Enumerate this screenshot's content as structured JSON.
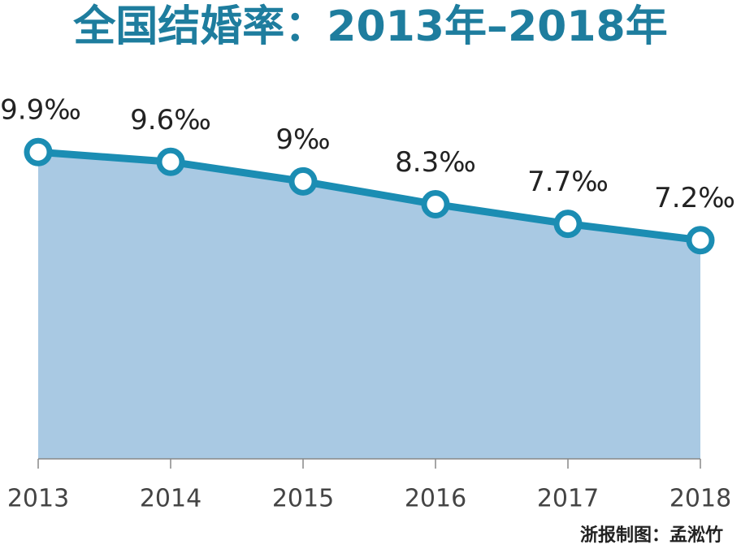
{
  "chart_data": {
    "type": "area",
    "title": "全国结婚率：2013年–2018年",
    "categories": [
      "2013",
      "2014",
      "2015",
      "2016",
      "2017",
      "2018"
    ],
    "values": [
      9.9,
      9.6,
      9,
      8.3,
      7.7,
      7.2
    ],
    "value_labels": [
      "9.9‰",
      "9.6‰",
      "9‰",
      "8.3‰",
      "7.7‰",
      "7.2‰"
    ],
    "ylim": [
      0.5,
      11
    ],
    "line_color": "#1b8db3",
    "fill_color": "#a9c9e3",
    "credit": "浙报制图：孟淞竹"
  }
}
